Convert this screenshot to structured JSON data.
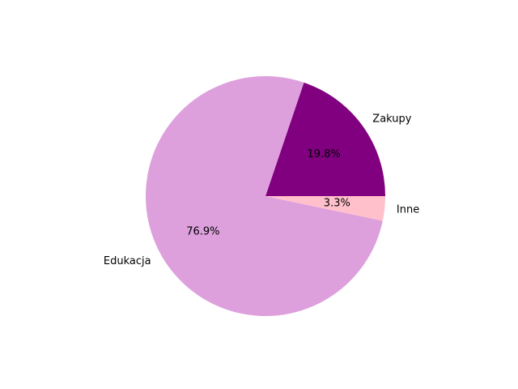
{
  "chart_data": {
    "type": "pie",
    "title": "",
    "start_angle_deg": 0,
    "direction": "counterclockwise",
    "slices": [
      {
        "label": "Zakupy",
        "value": 19.8,
        "pct_label": "19.8%",
        "color": "#800080"
      },
      {
        "label": "Edukacja",
        "value": 76.9,
        "pct_label": "76.9%",
        "color": "#DDA0DD"
      },
      {
        "label": "Inne",
        "value": 3.3,
        "pct_label": "3.3%",
        "color": "#FFC0CB"
      }
    ]
  }
}
